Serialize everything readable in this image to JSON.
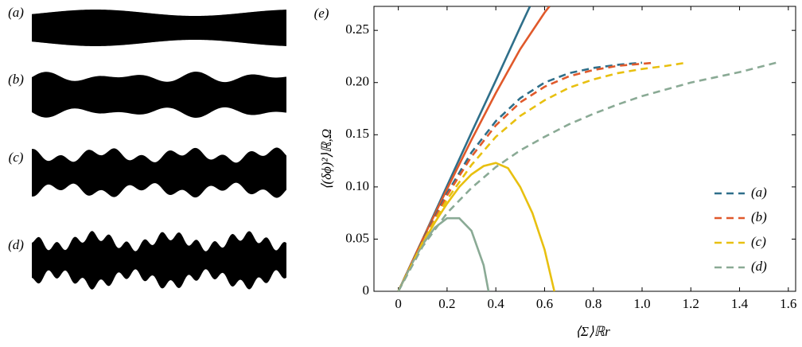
{
  "panel_labels": [
    "(a)",
    "(b)",
    "(c)",
    "(d)"
  ],
  "chart_data": {
    "type": "line",
    "panel_label": "(e)",
    "x_label": "⟨Σ⟩ℝr",
    "y_label": "⟨(δϕ)²⟩ℝ,Ω",
    "xlim": [
      -0.1,
      1.63
    ],
    "ylim": [
      0,
      0.273
    ],
    "xticks": [
      0,
      0.2,
      0.4,
      0.6,
      0.8,
      {
        "value": 1,
        "label": "1.0"
      },
      1.2,
      1.4,
      1.6
    ],
    "yticks": [
      0,
      0.05,
      {
        "value": 0.1,
        "label": "0.10"
      },
      0.15,
      {
        "value": 0.2,
        "label": "0.20"
      },
      0.25
    ],
    "legend": "lower right",
    "series": [
      {
        "color": "#2f6f8a",
        "dashed": false,
        "x": [
          0,
          0.1,
          0.2,
          0.3,
          0.4,
          0.5,
          0.54
        ],
        "y": [
          0,
          0.05,
          0.101,
          0.152,
          0.202,
          0.253,
          0.273
        ]
      },
      {
        "color": "#e0592b",
        "dashed": false,
        "x": [
          0,
          0.1,
          0.2,
          0.3,
          0.4,
          0.5,
          0.6,
          0.62
        ],
        "y": [
          0,
          0.05,
          0.098,
          0.145,
          0.19,
          0.232,
          0.267,
          0.273
        ]
      },
      {
        "color": "#e8c010",
        "dashed": false,
        "x": [
          0,
          0.05,
          0.1,
          0.15,
          0.2,
          0.25,
          0.3,
          0.35,
          0.4,
          0.45,
          0.5,
          0.55,
          0.6,
          0.64
        ],
        "y": [
          0,
          0.024,
          0.046,
          0.066,
          0.084,
          0.1,
          0.112,
          0.12,
          0.123,
          0.118,
          0.1,
          0.075,
          0.04,
          0
        ]
      },
      {
        "color": "#8aaa95",
        "dashed": false,
        "x": [
          0,
          0.05,
          0.1,
          0.15,
          0.2,
          0.25,
          0.3,
          0.35,
          0.37
        ],
        "y": [
          0,
          0.024,
          0.045,
          0.061,
          0.07,
          0.07,
          0.058,
          0.025,
          0
        ]
      },
      {
        "name": "(a)",
        "color": "#2f6f8a",
        "dashed": true,
        "x": [
          0,
          0.1,
          0.2,
          0.3,
          0.4,
          0.5,
          0.6,
          0.7,
          0.8,
          0.9,
          1.0
        ],
        "y": [
          0,
          0.049,
          0.094,
          0.133,
          0.163,
          0.185,
          0.2,
          0.209,
          0.214,
          0.217,
          0.219
        ]
      },
      {
        "name": "(b)",
        "color": "#e0592b",
        "dashed": true,
        "x": [
          0,
          0.1,
          0.2,
          0.3,
          0.4,
          0.5,
          0.6,
          0.7,
          0.8,
          0.9,
          1.0,
          1.05
        ],
        "y": [
          0,
          0.048,
          0.092,
          0.129,
          0.159,
          0.181,
          0.196,
          0.206,
          0.212,
          0.216,
          0.218,
          0.219
        ]
      },
      {
        "name": "(c)",
        "color": "#e8c010",
        "dashed": true,
        "x": [
          0,
          0.1,
          0.2,
          0.3,
          0.4,
          0.5,
          0.6,
          0.7,
          0.8,
          0.9,
          1.0,
          1.1,
          1.18
        ],
        "y": [
          0,
          0.047,
          0.088,
          0.121,
          0.148,
          0.168,
          0.183,
          0.195,
          0.203,
          0.209,
          0.213,
          0.216,
          0.219
        ]
      },
      {
        "name": "(d)",
        "color": "#8aaa95",
        "dashed": true,
        "x": [
          0,
          0.1,
          0.2,
          0.3,
          0.4,
          0.5,
          0.6,
          0.7,
          0.8,
          0.9,
          1.0,
          1.2,
          1.4,
          1.55
        ],
        "y": [
          0,
          0.043,
          0.075,
          0.099,
          0.119,
          0.135,
          0.148,
          0.16,
          0.17,
          0.179,
          0.187,
          0.2,
          0.21,
          0.219
        ]
      }
    ]
  }
}
